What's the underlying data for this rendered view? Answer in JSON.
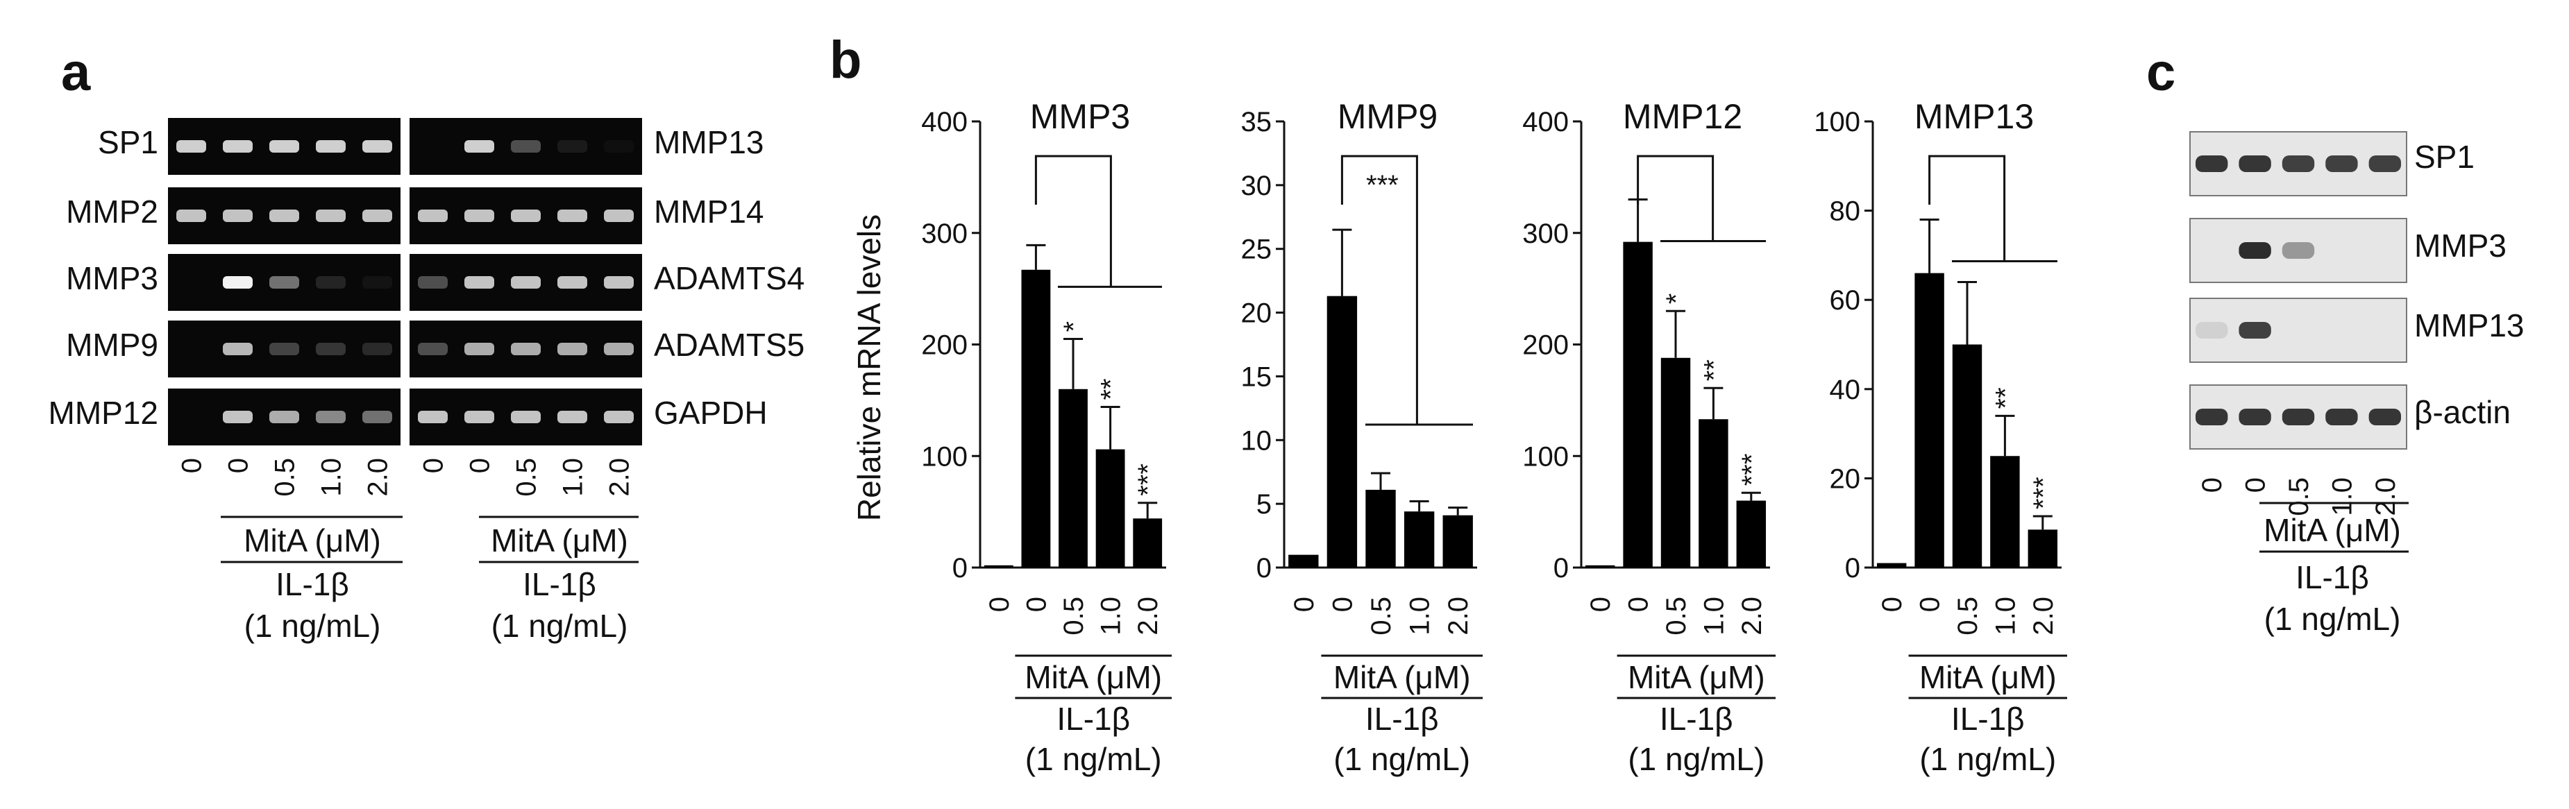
{
  "panels": {
    "a": "a",
    "b": "b",
    "c": "c"
  },
  "colors": {
    "gel_bg": "#080808",
    "band": "#f2f2f2",
    "blot_bg": "#e6e6e6",
    "blot_band": "#222222",
    "bar": "#000000"
  },
  "gel": {
    "left_labels": [
      "SP1",
      "MMP2",
      "MMP3",
      "MMP9",
      "MMP12"
    ],
    "right_labels": [
      "MMP13",
      "MMP14",
      "ADAMTS4",
      "ADAMTS5",
      "GAPDH"
    ],
    "left_intensity": [
      [
        0.85,
        0.85,
        0.85,
        0.85,
        0.85
      ],
      [
        0.8,
        0.8,
        0.8,
        0.8,
        0.8
      ],
      [
        0.0,
        1.0,
        0.45,
        0.12,
        0.05
      ],
      [
        0.0,
        0.75,
        0.25,
        0.2,
        0.15
      ],
      [
        0.0,
        0.8,
        0.7,
        0.55,
        0.45
      ]
    ],
    "right_intensity": [
      [
        0.0,
        0.85,
        0.3,
        0.08,
        0.03
      ],
      [
        0.8,
        0.8,
        0.8,
        0.8,
        0.8
      ],
      [
        0.3,
        0.8,
        0.8,
        0.8,
        0.8
      ],
      [
        0.3,
        0.7,
        0.7,
        0.7,
        0.7
      ],
      [
        0.8,
        0.8,
        0.8,
        0.8,
        0.8
      ]
    ]
  },
  "conditions": {
    "doses": [
      "0",
      "0",
      "0.5",
      "1.0",
      "2.0"
    ],
    "treatment": "MitA (μM)",
    "stimulus": "IL-1β",
    "stimulus_conc": "(1 ng/mL)"
  },
  "chart_data": [
    {
      "type": "bar",
      "title": "MMP3",
      "ylabel": "Relative  mRNA  levels",
      "categories": [
        "0",
        "0",
        "0.5",
        "1.0",
        "2.0"
      ],
      "values": [
        2,
        267,
        160,
        106,
        44
      ],
      "errors": [
        0,
        22,
        45,
        38,
        14
      ],
      "ylim": [
        0,
        400
      ],
      "yticks": [
        0,
        100,
        200,
        300,
        400
      ],
      "significance": [
        "",
        "",
        "*",
        "**",
        "***"
      ]
    },
    {
      "type": "bar",
      "title": "MMP9",
      "categories": [
        "0",
        "0",
        "0.5",
        "1.0",
        "2.0"
      ],
      "values": [
        1,
        21.3,
        6.1,
        4.4,
        4.1
      ],
      "errors": [
        0,
        5.2,
        1.3,
        0.8,
        0.6
      ],
      "ylim": [
        0,
        35
      ],
      "yticks": [
        0,
        5,
        10,
        15,
        20,
        25,
        30,
        35
      ],
      "significance": [
        "",
        "",
        "",
        "",
        ""
      ],
      "group_significance": "***"
    },
    {
      "type": "bar",
      "title": "MMP12",
      "categories": [
        "0",
        "0",
        "0.5",
        "1.0",
        "2.0"
      ],
      "values": [
        2,
        292,
        188,
        133,
        60
      ],
      "errors": [
        0,
        38,
        42,
        28,
        7
      ],
      "ylim": [
        0,
        400
      ],
      "yticks": [
        0,
        100,
        200,
        300,
        400
      ],
      "significance": [
        "",
        "",
        "*",
        "**",
        "***"
      ]
    },
    {
      "type": "bar",
      "title": "MMP13",
      "categories": [
        "0",
        "0",
        "0.5",
        "1.0",
        "2.0"
      ],
      "values": [
        1,
        66,
        50,
        25,
        8.5
      ],
      "errors": [
        0,
        12,
        14,
        9,
        3
      ],
      "ylim": [
        0,
        100
      ],
      "yticks": [
        0,
        20,
        40,
        60,
        80,
        100
      ],
      "significance": [
        "",
        "",
        "",
        "**",
        "***"
      ]
    }
  ],
  "blot": {
    "labels": [
      "SP1",
      "MMP3",
      "MMP13",
      "β-actin"
    ],
    "intensity": [
      [
        0.9,
        0.9,
        0.85,
        0.85,
        0.85
      ],
      [
        0.0,
        0.95,
        0.4,
        0.0,
        0.0
      ],
      [
        0.1,
        0.85,
        0.0,
        0.0,
        0.0
      ],
      [
        0.9,
        0.9,
        0.9,
        0.9,
        0.9
      ]
    ]
  }
}
